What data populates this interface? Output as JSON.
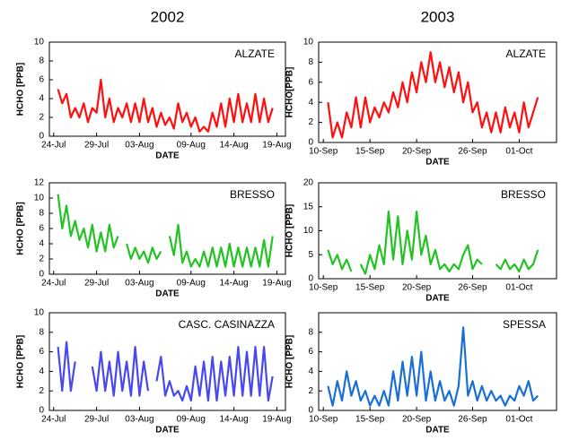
{
  "chart_data": [
    {
      "type": "line",
      "title": "2002",
      "annotation": "ALZATE",
      "xlabel": "DATE",
      "ylabel": "HCHO [PPB]",
      "color": "#ff1010",
      "x": [
        0.5,
        1,
        1.5,
        2,
        2.5,
        3,
        3.5,
        4,
        4.5,
        5,
        5.5,
        6,
        6.5,
        7,
        7.5,
        8,
        8.5,
        9,
        9.5,
        10,
        10.5,
        11,
        11.5,
        12,
        12.5,
        13,
        13.5,
        14,
        14.5,
        15,
        15.5,
        16,
        16.5,
        17,
        17.5,
        18,
        18.5,
        19,
        19.5,
        20,
        20.5,
        21,
        21.5,
        22,
        22.5,
        23,
        23.5,
        24,
        24.5,
        25,
        25.5
      ],
      "values": [
        5,
        3.5,
        4.5,
        2,
        3,
        2,
        3.5,
        1.5,
        3,
        2.5,
        6,
        2,
        4,
        1.5,
        3,
        2,
        3.5,
        1.5,
        3.5,
        1.5,
        4,
        1.5,
        3,
        1,
        2.5,
        1.2,
        2,
        0.8,
        3.5,
        1.5,
        2.5,
        1,
        2,
        0.5,
        1,
        0.5,
        2.5,
        1,
        3.5,
        1,
        4,
        1.5,
        4.5,
        1.5,
        3.5,
        1.5,
        4.5,
        1.5,
        4,
        1.5,
        3
      ],
      "xlim": [
        -0.5,
        27
      ],
      "xticks": [
        {
          "value": 0,
          "label": "24-Jul"
        },
        {
          "value": 5,
          "label": "29-Jul"
        },
        {
          "value": 10,
          "label": "03-Aug"
        },
        {
          "value": 16,
          "label": "09-Aug"
        },
        {
          "value": 21,
          "label": "14-Aug"
        },
        {
          "value": 26,
          "label": "19-Aug"
        }
      ],
      "ylim": [
        0,
        10
      ],
      "yticks": [
        0,
        2,
        4,
        6,
        8,
        10
      ]
    },
    {
      "type": "line",
      "title": "2003",
      "annotation": "ALZATE",
      "xlabel": "DATE",
      "ylabel": "HCHO[PPB]",
      "color": "#ff1010",
      "x": [
        0.5,
        1,
        1.5,
        2,
        2.5,
        3,
        3.5,
        4,
        4.5,
        5,
        5.5,
        6,
        6.5,
        7,
        7.5,
        8,
        8.5,
        9,
        9.5,
        10,
        10.5,
        11,
        11.5,
        12,
        12.5,
        13,
        13.5,
        14,
        14.5,
        15,
        15.5,
        16,
        16.5,
        17,
        17.5,
        18,
        18.5,
        19,
        19.5,
        20,
        20.5,
        21,
        21.5,
        22,
        22.5,
        23
      ],
      "values": [
        4,
        0.5,
        2,
        0.5,
        3,
        1.5,
        4.5,
        1.5,
        4.5,
        2,
        3.5,
        2.5,
        4,
        3,
        5,
        3.5,
        6,
        4,
        7,
        5,
        8,
        6,
        9,
        6,
        8,
        5.5,
        7.5,
        5,
        7,
        4,
        6,
        3,
        4,
        1.5,
        3,
        1,
        3,
        1,
        3.5,
        1.5,
        3,
        1,
        4,
        1.5,
        3,
        4.5
      ],
      "xlim": [
        -0.5,
        25
      ],
      "xticks": [
        {
          "value": 0,
          "label": "10-Sep"
        },
        {
          "value": 5,
          "label": "15-Sep"
        },
        {
          "value": 10,
          "label": "20-Sep"
        },
        {
          "value": 16,
          "label": "26-Sep"
        },
        {
          "value": 21,
          "label": "01-Oct"
        }
      ],
      "ylim": [
        0,
        10
      ],
      "yticks": [
        0,
        2,
        4,
        6,
        8,
        10
      ]
    },
    {
      "type": "line",
      "annotation": "BRESSO",
      "xlabel": "DATE",
      "ylabel": "HCHO [PPB]",
      "color": "#22c322",
      "x": [
        0.5,
        1,
        1.5,
        2,
        2.5,
        3,
        3.5,
        4,
        4.5,
        5,
        5.5,
        6,
        6.5,
        7,
        7.5,
        8,
        8.5,
        9,
        9.5,
        10,
        10.5,
        11,
        11.5,
        12,
        12.5,
        13,
        13.5,
        14,
        14.5,
        15,
        15.5,
        16,
        16.5,
        17,
        17.5,
        18,
        18.5,
        19,
        19.5,
        20,
        20.5,
        21,
        21.5,
        22,
        22.5,
        23,
        23.5,
        24,
        24.5,
        25,
        25.5
      ],
      "values": [
        10.5,
        6,
        9,
        5,
        7,
        4.5,
        6,
        3.5,
        6.5,
        3,
        5.5,
        3,
        6.5,
        3.5,
        5,
        null,
        4,
        2,
        3.5,
        2,
        3,
        1.5,
        3.5,
        2,
        3,
        null,
        5,
        2.5,
        6.5,
        1.5,
        3,
        1,
        2,
        1,
        3,
        1,
        3.5,
        1,
        3.5,
        1,
        4,
        1,
        3.5,
        1,
        3.5,
        1,
        3.5,
        1,
        4.5,
        1,
        5
      ],
      "xlim": [
        -0.5,
        27
      ],
      "xticks": [
        {
          "value": 0,
          "label": "24-Jul"
        },
        {
          "value": 5,
          "label": "29-Jul"
        },
        {
          "value": 10,
          "label": "03-Aug"
        },
        {
          "value": 16,
          "label": "09-Aug"
        },
        {
          "value": 21,
          "label": "14-Aug"
        },
        {
          "value": 26,
          "label": "19-Aug"
        }
      ],
      "ylim": [
        0,
        12
      ],
      "yticks": [
        0,
        2,
        4,
        6,
        8,
        10,
        12
      ]
    },
    {
      "type": "line",
      "annotation": "BRESSO",
      "xlabel": "DATE",
      "ylabel": "HCHO [PPB]",
      "color": "#22c322",
      "x": [
        0.5,
        1,
        1.5,
        2,
        2.5,
        3,
        3.5,
        4,
        4.5,
        5,
        5.5,
        6,
        6.5,
        7,
        7.5,
        8,
        8.5,
        9,
        9.5,
        10,
        10.5,
        11,
        11.5,
        12,
        12.5,
        13,
        13.5,
        14,
        14.5,
        15,
        15.5,
        16,
        16.5,
        17,
        17.5,
        18,
        18.5,
        19,
        19.5,
        20,
        20.5,
        21,
        21.5,
        22,
        22.5,
        23
      ],
      "values": [
        6,
        3,
        5,
        2,
        4,
        1.5,
        null,
        3,
        1,
        5,
        2,
        7,
        3,
        14,
        4,
        13,
        3,
        10,
        4,
        14,
        5,
        9,
        3,
        6,
        2,
        3,
        1.5,
        3,
        2,
        5,
        7,
        2,
        4,
        3,
        null,
        null,
        3,
        2,
        4,
        2,
        3,
        1.5,
        4,
        2,
        3,
        6
      ],
      "xlim": [
        -0.5,
        25
      ],
      "xticks": [
        {
          "value": 0,
          "label": "10-Sep"
        },
        {
          "value": 5,
          "label": "15-Sep"
        },
        {
          "value": 10,
          "label": "20-Sep"
        },
        {
          "value": 16,
          "label": "26-Sep"
        },
        {
          "value": 21,
          "label": "01-Oct"
        }
      ],
      "ylim": [
        0,
        20
      ],
      "yticks": [
        0,
        5,
        10,
        15,
        20
      ]
    },
    {
      "type": "line",
      "annotation": "CASC. CASINAZZA",
      "xlabel": "DATE",
      "ylabel": "HCHO [PPB]",
      "color": "#4848f0",
      "x": [
        0.5,
        1,
        1.5,
        2,
        2.5,
        3,
        3.5,
        4,
        4.5,
        5,
        5.5,
        6,
        6.5,
        7,
        7.5,
        8,
        8.5,
        9,
        9.5,
        10,
        10.5,
        11,
        11.5,
        12,
        12.5,
        13,
        13.5,
        14,
        14.5,
        15,
        15.5,
        16,
        16.5,
        17,
        17.5,
        18,
        18.5,
        19,
        19.5,
        20,
        20.5,
        21,
        21.5,
        22,
        22.5,
        23,
        23.5,
        24,
        24.5,
        25,
        25.5
      ],
      "values": [
        6.5,
        2,
        7,
        2,
        5,
        null,
        null,
        null,
        4.5,
        2,
        6,
        2,
        5,
        1.5,
        6,
        2,
        5,
        1.5,
        6.5,
        1.5,
        5,
        2,
        null,
        3,
        5.5,
        1.5,
        3,
        1.5,
        2,
        1,
        2.5,
        1,
        4.5,
        1.5,
        5,
        1,
        5.5,
        1,
        5,
        1.5,
        5.5,
        1.5,
        6.5,
        1.5,
        6,
        1.5,
        6.5,
        1.5,
        6.5,
        1,
        3.5
      ],
      "xlim": [
        -0.5,
        27
      ],
      "xticks": [
        {
          "value": 0,
          "label": "24-Jul"
        },
        {
          "value": 5,
          "label": "29-Jul"
        },
        {
          "value": 10,
          "label": "03-Aug"
        },
        {
          "value": 16,
          "label": "09-Aug"
        },
        {
          "value": 21,
          "label": "14-Aug"
        },
        {
          "value": 26,
          "label": "19-Aug"
        }
      ],
      "ylim": [
        0,
        10
      ],
      "yticks": [
        0,
        2,
        4,
        6,
        8,
        10
      ]
    },
    {
      "type": "line",
      "annotation": "SPESSA",
      "xlabel": "DATE",
      "ylabel": "HCHO [PPB]",
      "color": "#1a6fd6",
      "x": [
        0.5,
        1,
        1.5,
        2,
        2.5,
        3,
        3.5,
        4,
        4.5,
        5,
        5.5,
        6,
        6.5,
        7,
        7.5,
        8,
        8.5,
        9,
        9.5,
        10,
        10.5,
        11,
        11.5,
        12,
        12.5,
        13,
        13.5,
        14,
        14.5,
        15,
        15.5,
        16,
        16.5,
        17,
        17.5,
        18,
        18.5,
        19,
        19.5,
        20,
        20.5,
        21,
        21.5,
        22,
        22.5,
        23
      ],
      "values": [
        2.5,
        0.5,
        3,
        1,
        4,
        1.5,
        3,
        1,
        2,
        0.5,
        1.5,
        0.5,
        2,
        0.5,
        4,
        1,
        5,
        1.5,
        5.5,
        1.5,
        6,
        1,
        4,
        1,
        3,
        1,
        2,
        0.5,
        2.5,
        8.5,
        1.5,
        3,
        1,
        2.5,
        1,
        2,
        1,
        1.5,
        0.5,
        1.5,
        1,
        2.5,
        1.5,
        3,
        1,
        1.5
      ],
      "xlim": [
        -0.5,
        25
      ],
      "xticks": [
        {
          "value": 0,
          "label": "10-Sep"
        },
        {
          "value": 5,
          "label": "15-Sep"
        },
        {
          "value": 10,
          "label": "20-Sep"
        },
        {
          "value": 16,
          "label": "26-Sep"
        },
        {
          "value": 21,
          "label": "01-Oct"
        }
      ],
      "ylim": [
        0,
        10
      ],
      "yticks": [
        0,
        2,
        4,
        6,
        8
      ]
    }
  ]
}
